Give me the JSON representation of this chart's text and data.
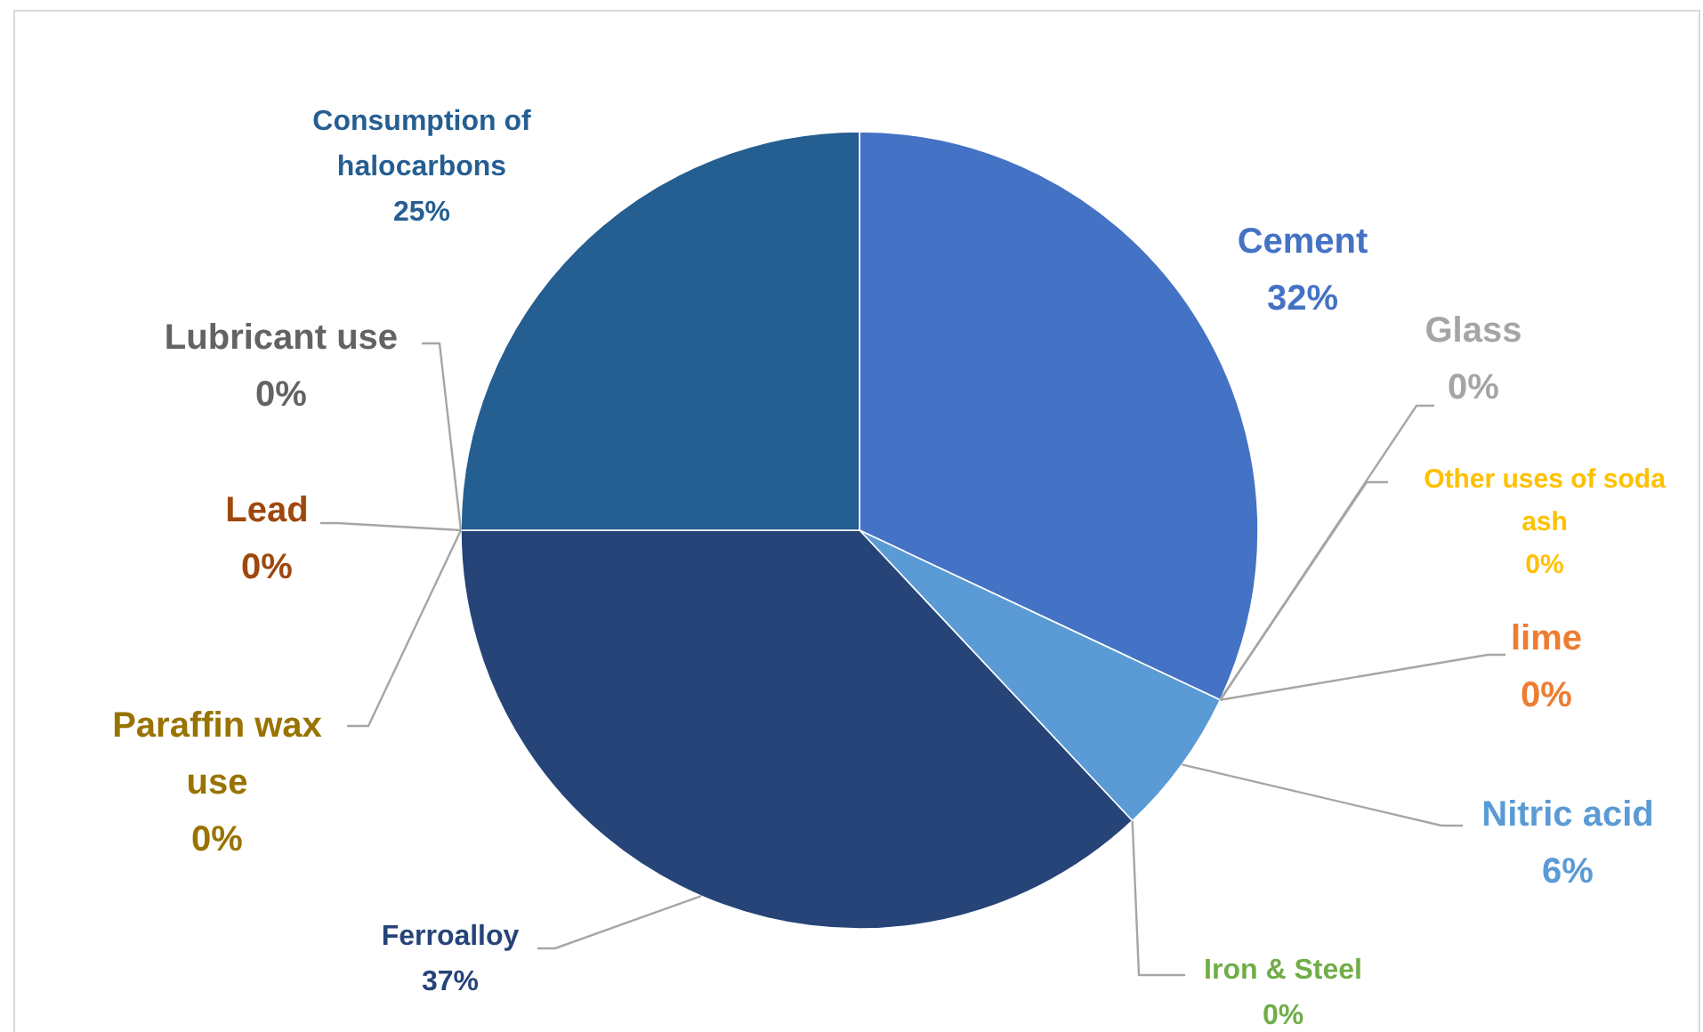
{
  "chart_data": {
    "type": "pie",
    "categories": [
      "Cement",
      "Glass",
      "Other uses of soda ash",
      "lime",
      "Nitric acid",
      "Iron & Steel",
      "Ferroalloy",
      "Paraffin wax use",
      "Lead",
      "Lubricant use",
      "Consumption of halocarbons"
    ],
    "values": [
      32,
      0,
      0,
      0,
      6,
      0,
      37,
      0,
      0,
      0,
      25
    ],
    "colors": [
      "#4472c4",
      "#a5a5a5",
      "#ffc000",
      "#ed7d31",
      "#5b9bd5",
      "#70ad47",
      "#264478",
      "#997300",
      "#9e480e",
      "#636363",
      "#255e91"
    ],
    "value_labels": [
      "32%",
      "0%",
      "0%",
      "0%",
      "6%",
      "0%",
      "37%",
      "0%",
      "0%",
      "0%",
      "25%"
    ]
  }
}
